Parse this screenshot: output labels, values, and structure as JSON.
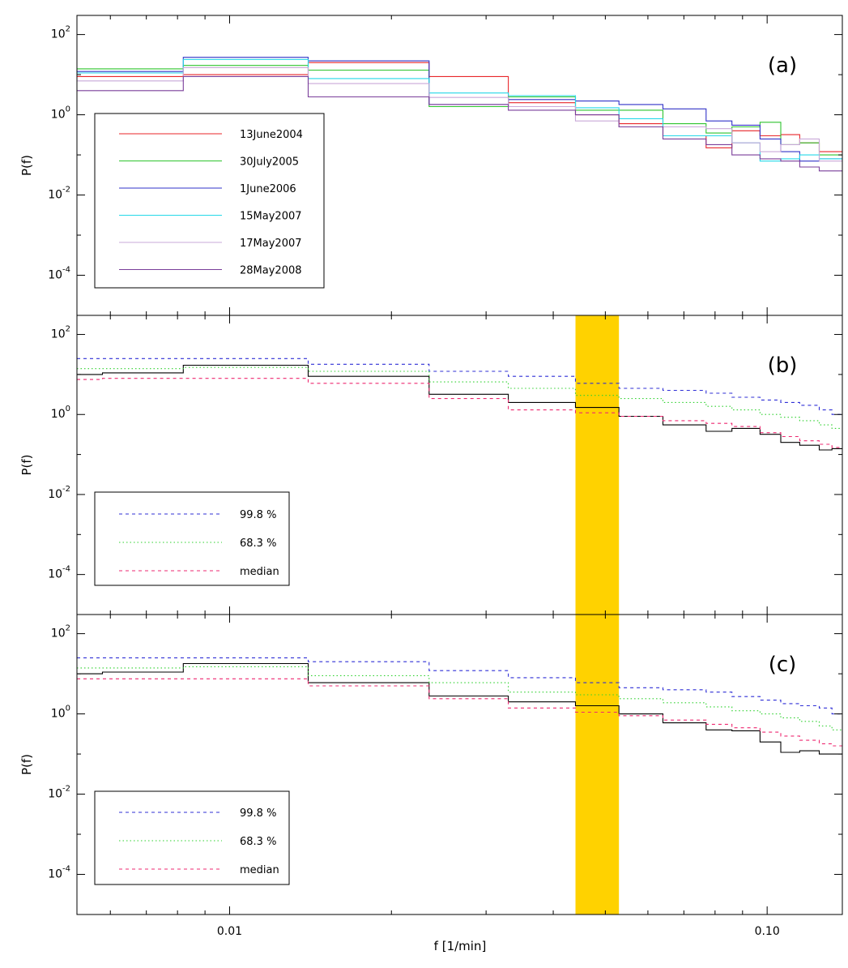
{
  "chart_data": [
    {
      "type": "line",
      "panel_label": "(a)",
      "ylabel": "P(f)",
      "xlabel": "",
      "xscale": "log",
      "yscale": "log",
      "xlim": [
        0.0052,
        0.138
      ],
      "ylim": [
        1e-05,
        300
      ],
      "legend_position": "bottom-left",
      "bin_edges": [
        0.0052,
        0.0082,
        0.014,
        0.0235,
        0.033,
        0.044,
        0.053,
        0.064,
        0.077,
        0.086,
        0.097,
        0.106,
        0.115,
        0.125,
        0.138
      ],
      "series": [
        {
          "name": "13June2004",
          "color": "#e8262a",
          "dash": "solid",
          "values": [
            9.0,
            10.0,
            20.0,
            9.0,
            2.0,
            1.0,
            0.6,
            0.3,
            0.15,
            0.4,
            0.3,
            0.32,
            0.2,
            0.12
          ]
        },
        {
          "name": "30July2005",
          "color": "#2ec42e",
          "dash": "solid",
          "values": [
            14.0,
            17.0,
            13.0,
            1.6,
            2.8,
            1.3,
            1.3,
            0.6,
            0.35,
            0.5,
            0.65,
            0.18,
            0.2,
            0.1
          ]
        },
        {
          "name": "1June2006",
          "color": "#3233c8",
          "dash": "solid",
          "values": [
            12.0,
            27.0,
            22.0,
            1.8,
            2.4,
            2.2,
            1.8,
            1.4,
            0.7,
            0.55,
            0.25,
            0.12,
            0.07,
            0.08
          ]
        },
        {
          "name": "15May2007",
          "color": "#25d8e8",
          "dash": "solid",
          "values": [
            11.0,
            24.0,
            8.0,
            3.5,
            3.0,
            1.5,
            0.8,
            0.3,
            0.3,
            0.2,
            0.07,
            0.08,
            0.1,
            0.08
          ]
        },
        {
          "name": "17May2007",
          "color": "#c9a8d8",
          "dash": "solid",
          "values": [
            7.0,
            15.0,
            6.0,
            2.7,
            1.6,
            0.7,
            0.5,
            0.5,
            0.45,
            0.2,
            0.12,
            0.18,
            0.25,
            0.07
          ]
        },
        {
          "name": "28May2008",
          "color": "#7a3e9a",
          "dash": "solid",
          "values": [
            4.0,
            9.0,
            2.8,
            1.8,
            1.3,
            1.0,
            0.5,
            0.25,
            0.18,
            0.1,
            0.08,
            0.07,
            0.05,
            0.04
          ]
        }
      ],
      "legend": [
        "13June2004",
        "30July2005",
        "1June2006",
        "15May2007",
        "17May2007",
        "28May2008"
      ]
    },
    {
      "type": "line",
      "panel_label": "(b)",
      "ylabel": "P(f)",
      "xlabel": "",
      "xscale": "log",
      "yscale": "log",
      "xlim": [
        0.0052,
        0.138
      ],
      "ylim": [
        1e-05,
        300
      ],
      "legend_position": "bottom-left",
      "highlight_band": {
        "x": [
          0.044,
          0.053
        ],
        "color": "#ffd200"
      },
      "bin_edges": [
        0.0052,
        0.0058,
        0.0082,
        0.014,
        0.0235,
        0.033,
        0.044,
        0.053,
        0.064,
        0.077,
        0.086,
        0.097,
        0.106,
        0.115,
        0.125,
        0.132,
        0.138
      ],
      "series": [
        {
          "name": "P(f)",
          "color": "#000000",
          "dash": "solid",
          "values": [
            10.0,
            11.0,
            17.0,
            9.0,
            3.2,
            2.0,
            1.5,
            0.9,
            0.55,
            0.38,
            0.45,
            0.32,
            0.2,
            0.17,
            0.13,
            0.14
          ]
        },
        {
          "name": "99.8 %",
          "color": "#2f2fd6",
          "dash": "dashed",
          "values": [
            25.0,
            25.0,
            25.0,
            18.0,
            12.0,
            9.0,
            6.0,
            4.5,
            4.0,
            3.4,
            2.7,
            2.3,
            2.0,
            1.7,
            1.3,
            1.0
          ]
        },
        {
          "name": "68.3 %",
          "color": "#2ed12e",
          "dash": "dotted",
          "values": [
            14.0,
            14.0,
            15.0,
            12.0,
            6.5,
            4.5,
            3.0,
            2.5,
            2.0,
            1.6,
            1.3,
            1.0,
            0.85,
            0.7,
            0.55,
            0.45
          ]
        },
        {
          "name": "median",
          "color": "#ee2870",
          "dash": "dashed",
          "values": [
            7.5,
            8.0,
            8.0,
            6.0,
            2.5,
            1.3,
            1.1,
            0.9,
            0.7,
            0.6,
            0.5,
            0.35,
            0.28,
            0.22,
            0.18,
            0.15
          ]
        }
      ],
      "legend": [
        "99.8 %",
        "68.3 %",
        "median"
      ]
    },
    {
      "type": "line",
      "panel_label": "(c)",
      "ylabel": "P(f)",
      "xlabel": "f  [1/min]",
      "xscale": "log",
      "yscale": "log",
      "xlim": [
        0.0052,
        0.138
      ],
      "ylim": [
        1e-05,
        300
      ],
      "x_ticks": [
        "0.01",
        "0.10"
      ],
      "legend_position": "bottom-left",
      "highlight_band": {
        "x": [
          0.044,
          0.053
        ],
        "color": "#ffd200"
      },
      "bin_edges": [
        0.0052,
        0.0058,
        0.0082,
        0.014,
        0.0235,
        0.033,
        0.044,
        0.053,
        0.064,
        0.077,
        0.086,
        0.097,
        0.106,
        0.115,
        0.125,
        0.132,
        0.138
      ],
      "series": [
        {
          "name": "P(f)",
          "color": "#000000",
          "dash": "solid",
          "values": [
            10.0,
            11.0,
            18.0,
            6.0,
            2.8,
            2.0,
            1.6,
            1.0,
            0.6,
            0.4,
            0.38,
            0.2,
            0.11,
            0.12,
            0.1,
            0.1
          ]
        },
        {
          "name": "99.8 %",
          "color": "#2f2fd6",
          "dash": "dashed",
          "values": [
            25.0,
            25.0,
            25.0,
            20.0,
            12.0,
            8.0,
            6.0,
            4.5,
            4.0,
            3.5,
            2.7,
            2.2,
            1.8,
            1.6,
            1.4,
            1.0
          ]
        },
        {
          "name": "68.3 %",
          "color": "#2ed12e",
          "dash": "dotted",
          "values": [
            14.0,
            14.0,
            15.0,
            9.0,
            6.0,
            3.5,
            3.0,
            2.4,
            1.9,
            1.5,
            1.2,
            1.0,
            0.8,
            0.65,
            0.5,
            0.4
          ]
        },
        {
          "name": "median",
          "color": "#ee2870",
          "dash": "dashed",
          "values": [
            7.5,
            7.5,
            7.5,
            5.0,
            2.4,
            1.4,
            1.1,
            0.9,
            0.7,
            0.55,
            0.45,
            0.35,
            0.28,
            0.22,
            0.18,
            0.16
          ]
        }
      ],
      "legend": [
        "99.8 %",
        "68.3 %",
        "median"
      ]
    }
  ]
}
